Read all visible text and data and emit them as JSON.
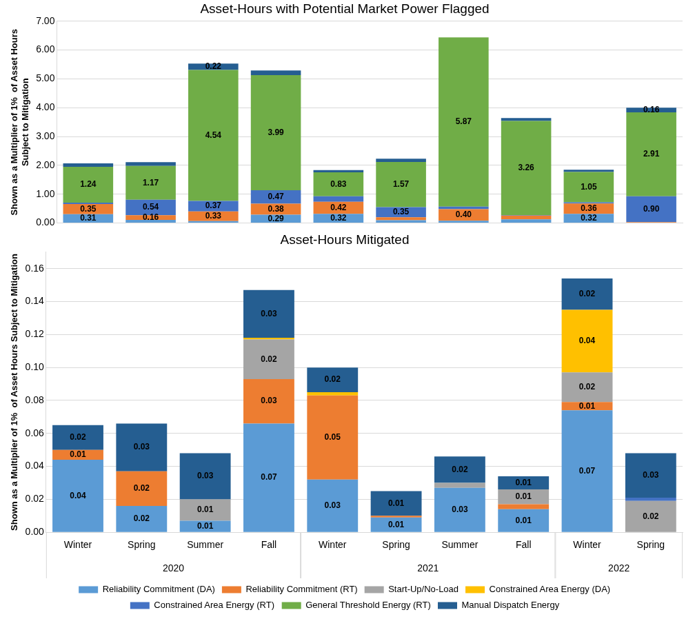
{
  "chart_data": [
    {
      "type": "bar",
      "title": "Asset-Hours with Potential Market Power Flagged",
      "ylabel": "Shown as a Multiplier of 1%  of Asset Hours Subject to Mitigation",
      "categories": [
        null,
        null,
        null,
        null,
        null,
        null,
        null,
        null,
        null,
        null
      ],
      "stacked": true,
      "ylim": [
        0,
        7
      ],
      "yticks": [
        {
          "value": 0,
          "label": "0.00"
        },
        {
          "value": 1,
          "label": "1.00"
        },
        {
          "value": 2,
          "label": "2.00"
        },
        {
          "value": 3,
          "label": "3.00"
        },
        {
          "value": 4,
          "label": "4.00"
        },
        {
          "value": 5,
          "label": "5.00"
        },
        {
          "value": 6,
          "label": "6.00"
        },
        {
          "value": 7,
          "label": "7.00"
        }
      ],
      "grid": "y",
      "legend": false,
      "tick_labels": "y",
      "series": [
        {
          "color": "#5b9bd5",
          "values": [
            0.31,
            0.11,
            0.07,
            0.29,
            0.32,
            0.1,
            0.08,
            0.13,
            0.32,
            null
          ],
          "value_labels": [
            "0.31",
            null,
            null,
            "0.29",
            "0.32",
            null,
            null,
            null,
            "0.32",
            null
          ]
        },
        {
          "color": "#ed7d31",
          "values": [
            0.35,
            0.16,
            0.33,
            0.38,
            0.42,
            0.1,
            0.4,
            0.13,
            0.36,
            0.03
          ],
          "value_labels": [
            "0.35",
            "0.16",
            "0.33",
            "0.38",
            "0.42",
            null,
            "0.40",
            null,
            "0.36",
            null
          ]
        },
        {
          "color": "#4472c4",
          "values": [
            0.05,
            0.54,
            0.37,
            0.47,
            0.19,
            0.35,
            0.09,
            0.02,
            0.04,
            0.9
          ],
          "value_labels": [
            null,
            "0.54",
            "0.37",
            "0.47",
            null,
            "0.35",
            null,
            null,
            null,
            "0.90"
          ]
        },
        {
          "color": "#70ad47",
          "values": [
            1.24,
            1.17,
            4.54,
            3.99,
            0.83,
            1.57,
            5.87,
            3.26,
            1.05,
            2.91
          ],
          "value_labels": [
            "1.24",
            "1.17",
            "4.54",
            "3.99",
            "0.83",
            "1.57",
            "5.87",
            "3.26",
            "1.05",
            "2.91"
          ]
        },
        {
          "color": "#255e91",
          "values": [
            0.12,
            0.13,
            0.22,
            0.16,
            0.08,
            0.11,
            null,
            0.1,
            0.08,
            0.16
          ],
          "value_labels": [
            null,
            null,
            "0.22",
            null,
            null,
            null,
            null,
            null,
            null,
            "0.16"
          ]
        }
      ]
    },
    {
      "type": "bar",
      "title": "Asset-Hours Mitigated",
      "ylabel": "Shown as a Multiplier of 1%  of Asset Hours Subject to Mitigation",
      "categories": [
        "Winter",
        "Spring",
        "Summer",
        "Fall",
        "Winter",
        "Spring",
        "Summer",
        "Fall",
        "Winter",
        "Spring"
      ],
      "stacked": true,
      "ylim": [
        0,
        0.17
      ],
      "yticks": [
        {
          "value": 0,
          "label": "0.00"
        },
        {
          "value": 0.02,
          "label": "0.02"
        },
        {
          "value": 0.04,
          "label": "0.04"
        },
        {
          "value": 0.06,
          "label": "0.06"
        },
        {
          "value": 0.08,
          "label": "0.08"
        },
        {
          "value": 0.1,
          "label": "0.10"
        },
        {
          "value": 0.12,
          "label": "0.12"
        },
        {
          "value": 0.14,
          "label": "0.14"
        },
        {
          "value": 0.16,
          "label": "0.16"
        }
      ],
      "grid": "y",
      "legend": "bottom",
      "annotations": [
        "2020",
        "2021",
        "2022"
      ],
      "series": [
        {
          "name": "Reliability Commitment (DA)",
          "color": "#5b9bd5",
          "values": [
            0.044,
            0.016,
            0.007,
            0.066,
            0.032,
            0.009,
            0.027,
            0.014,
            0.074,
            null
          ],
          "value_labels": [
            "0.04",
            "0.02",
            "0.01",
            "0.07",
            "0.03",
            "0.01",
            "0.03",
            "0.01",
            "0.07",
            null
          ]
        },
        {
          "name": "Reliability Commitment (RT)",
          "color": "#ed7d31",
          "values": [
            0.006,
            0.021,
            null,
            0.027,
            0.051,
            0.001,
            null,
            0.003,
            0.005,
            null
          ],
          "value_labels": [
            "0.01",
            "0.02",
            null,
            "0.03",
            "0.05",
            null,
            null,
            null,
            "0.01",
            null
          ]
        },
        {
          "name": "Start-Up/No-Load",
          "color": "#a5a5a5",
          "values": [
            null,
            null,
            0.013,
            0.024,
            null,
            null,
            0.003,
            0.009,
            0.018,
            0.019
          ],
          "value_labels": [
            null,
            null,
            "0.01",
            "0.02",
            null,
            null,
            null,
            "0.01",
            "0.02",
            "0.02"
          ]
        },
        {
          "name": "Constrained Area Energy (DA)",
          "color": "#ffc000",
          "values": [
            null,
            null,
            null,
            0.001,
            0.002,
            null,
            null,
            null,
            0.038,
            null
          ],
          "value_labels": [
            null,
            null,
            null,
            null,
            null,
            null,
            null,
            null,
            "0.04",
            null
          ]
        },
        {
          "name": "Constrained Area Energy (RT)",
          "color": "#4472c4",
          "values": [
            null,
            null,
            null,
            null,
            null,
            null,
            null,
            null,
            null,
            0.002
          ]
        },
        {
          "name": "General Threshold Energy (RT)",
          "color": "#70ad47",
          "values": [
            null,
            null,
            null,
            null,
            null,
            null,
            null,
            null,
            null,
            null
          ]
        },
        {
          "name": "Manual Dispatch Energy",
          "color": "#255e91",
          "values": [
            0.015,
            0.029,
            0.028,
            0.029,
            0.015,
            0.015,
            0.016,
            0.008,
            0.019,
            0.027
          ],
          "value_labels": [
            "0.02",
            "0.03",
            "0.03",
            "0.03",
            "0.02",
            "0.01",
            "0.02",
            "0.01",
            "0.02",
            "0.03"
          ]
        }
      ]
    }
  ]
}
